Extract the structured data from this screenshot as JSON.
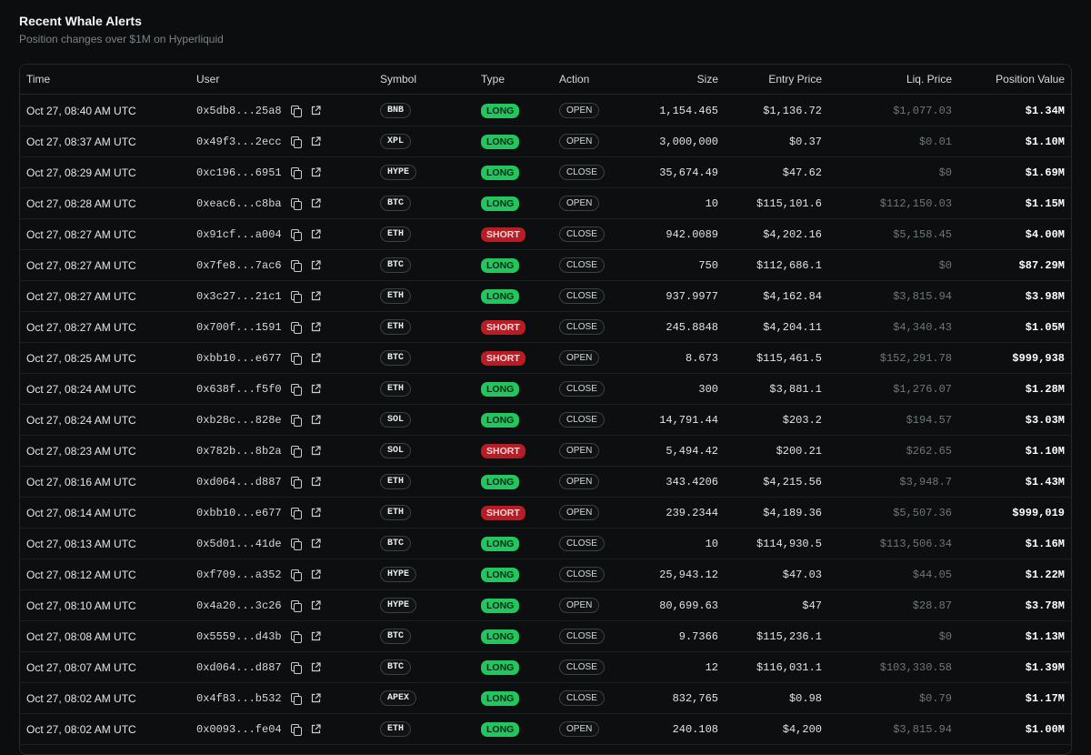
{
  "header": {
    "title": "Recent Whale Alerts",
    "subtitle": "Position changes over $1M on Hyperliquid"
  },
  "colors": {
    "long": "#23c55e",
    "short": "#b91c24",
    "background": "#0b0d0e"
  },
  "table": {
    "columns": [
      "Time",
      "User",
      "Symbol",
      "Type",
      "Action",
      "Size",
      "Entry Price",
      "Liq. Price",
      "Position Value"
    ],
    "rows": [
      {
        "time": "Oct 27, 08:40 AM UTC",
        "user": "0x5db8...25a8",
        "symbol": "BNB",
        "type": "LONG",
        "action": "OPEN",
        "size": "1,154.465",
        "entry": "$1,136.72",
        "liq": "$1,077.03",
        "value": "$1.34M"
      },
      {
        "time": "Oct 27, 08:37 AM UTC",
        "user": "0x49f3...2ecc",
        "symbol": "XPL",
        "type": "LONG",
        "action": "OPEN",
        "size": "3,000,000",
        "entry": "$0.37",
        "liq": "$0.01",
        "value": "$1.10M"
      },
      {
        "time": "Oct 27, 08:29 AM UTC",
        "user": "0xc196...6951",
        "symbol": "HYPE",
        "type": "LONG",
        "action": "CLOSE",
        "size": "35,674.49",
        "entry": "$47.62",
        "liq": "$0",
        "value": "$1.69M"
      },
      {
        "time": "Oct 27, 08:28 AM UTC",
        "user": "0xeac6...c8ba",
        "symbol": "BTC",
        "type": "LONG",
        "action": "OPEN",
        "size": "10",
        "entry": "$115,101.6",
        "liq": "$112,150.03",
        "value": "$1.15M"
      },
      {
        "time": "Oct 27, 08:27 AM UTC",
        "user": "0x91cf...a004",
        "symbol": "ETH",
        "type": "SHORT",
        "action": "CLOSE",
        "size": "942.0089",
        "entry": "$4,202.16",
        "liq": "$5,158.45",
        "value": "$4.00M"
      },
      {
        "time": "Oct 27, 08:27 AM UTC",
        "user": "0x7fe8...7ac6",
        "symbol": "BTC",
        "type": "LONG",
        "action": "CLOSE",
        "size": "750",
        "entry": "$112,686.1",
        "liq": "$0",
        "value": "$87.29M"
      },
      {
        "time": "Oct 27, 08:27 AM UTC",
        "user": "0x3c27...21c1",
        "symbol": "ETH",
        "type": "LONG",
        "action": "CLOSE",
        "size": "937.9977",
        "entry": "$4,162.84",
        "liq": "$3,815.94",
        "value": "$3.98M"
      },
      {
        "time": "Oct 27, 08:27 AM UTC",
        "user": "0x700f...1591",
        "symbol": "ETH",
        "type": "SHORT",
        "action": "CLOSE",
        "size": "245.8848",
        "entry": "$4,204.11",
        "liq": "$4,340.43",
        "value": "$1.05M"
      },
      {
        "time": "Oct 27, 08:25 AM UTC",
        "user": "0xbb10...e677",
        "symbol": "BTC",
        "type": "SHORT",
        "action": "OPEN",
        "size": "8.673",
        "entry": "$115,461.5",
        "liq": "$152,291.78",
        "value": "$999,938"
      },
      {
        "time": "Oct 27, 08:24 AM UTC",
        "user": "0x638f...f5f0",
        "symbol": "ETH",
        "type": "LONG",
        "action": "CLOSE",
        "size": "300",
        "entry": "$3,881.1",
        "liq": "$1,276.07",
        "value": "$1.28M"
      },
      {
        "time": "Oct 27, 08:24 AM UTC",
        "user": "0xb28c...828e",
        "symbol": "SOL",
        "type": "LONG",
        "action": "CLOSE",
        "size": "14,791.44",
        "entry": "$203.2",
        "liq": "$194.57",
        "value": "$3.03M"
      },
      {
        "time": "Oct 27, 08:23 AM UTC",
        "user": "0x782b...8b2a",
        "symbol": "SOL",
        "type": "SHORT",
        "action": "OPEN",
        "size": "5,494.42",
        "entry": "$200.21",
        "liq": "$262.65",
        "value": "$1.10M"
      },
      {
        "time": "Oct 27, 08:16 AM UTC",
        "user": "0xd064...d887",
        "symbol": "ETH",
        "type": "LONG",
        "action": "OPEN",
        "size": "343.4206",
        "entry": "$4,215.56",
        "liq": "$3,948.7",
        "value": "$1.43M"
      },
      {
        "time": "Oct 27, 08:14 AM UTC",
        "user": "0xbb10...e677",
        "symbol": "ETH",
        "type": "SHORT",
        "action": "OPEN",
        "size": "239.2344",
        "entry": "$4,189.36",
        "liq": "$5,507.36",
        "value": "$999,019"
      },
      {
        "time": "Oct 27, 08:13 AM UTC",
        "user": "0x5d01...41de",
        "symbol": "BTC",
        "type": "LONG",
        "action": "CLOSE",
        "size": "10",
        "entry": "$114,930.5",
        "liq": "$113,506.34",
        "value": "$1.16M"
      },
      {
        "time": "Oct 27, 08:12 AM UTC",
        "user": "0xf709...a352",
        "symbol": "HYPE",
        "type": "LONG",
        "action": "CLOSE",
        "size": "25,943.12",
        "entry": "$47.03",
        "liq": "$44.05",
        "value": "$1.22M"
      },
      {
        "time": "Oct 27, 08:10 AM UTC",
        "user": "0x4a20...3c26",
        "symbol": "HYPE",
        "type": "LONG",
        "action": "OPEN",
        "size": "80,699.63",
        "entry": "$47",
        "liq": "$28.87",
        "value": "$3.78M"
      },
      {
        "time": "Oct 27, 08:08 AM UTC",
        "user": "0x5559...d43b",
        "symbol": "BTC",
        "type": "LONG",
        "action": "CLOSE",
        "size": "9.7366",
        "entry": "$115,236.1",
        "liq": "$0",
        "value": "$1.13M"
      },
      {
        "time": "Oct 27, 08:07 AM UTC",
        "user": "0xd064...d887",
        "symbol": "BTC",
        "type": "LONG",
        "action": "CLOSE",
        "size": "12",
        "entry": "$116,031.1",
        "liq": "$103,330.58",
        "value": "$1.39M"
      },
      {
        "time": "Oct 27, 08:02 AM UTC",
        "user": "0x4f83...b532",
        "symbol": "APEX",
        "type": "LONG",
        "action": "CLOSE",
        "size": "832,765",
        "entry": "$0.98",
        "liq": "$0.79",
        "value": "$1.17M"
      },
      {
        "time": "Oct 27, 08:02 AM UTC",
        "user": "0x0093...fe04",
        "symbol": "ETH",
        "type": "LONG",
        "action": "OPEN",
        "size": "240.108",
        "entry": "$4,200",
        "liq": "$3,815.94",
        "value": "$1.00M"
      }
    ]
  }
}
